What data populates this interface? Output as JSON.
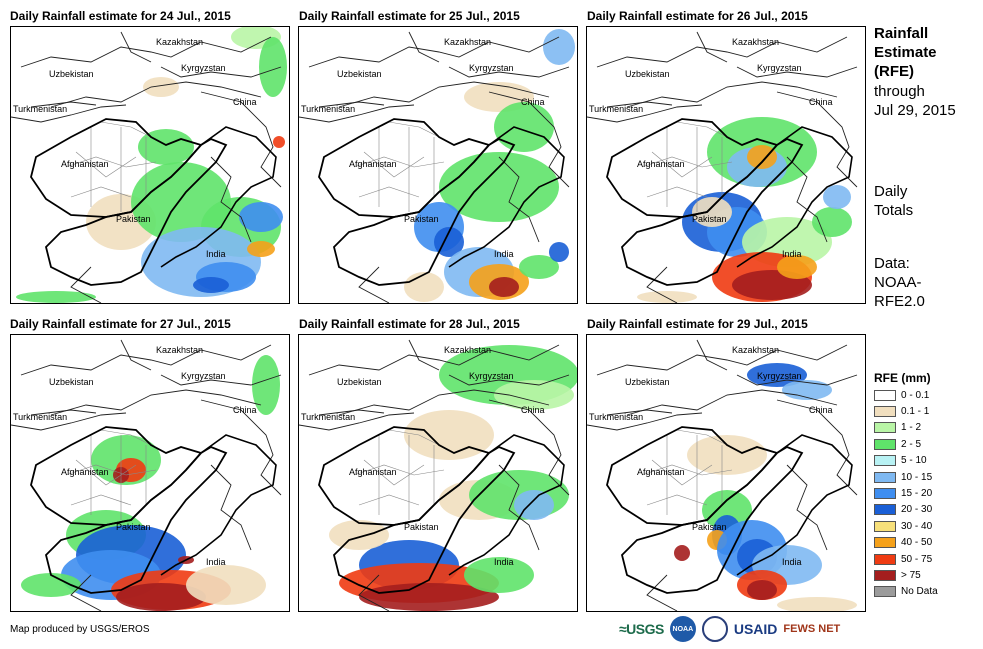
{
  "panels": [
    {
      "title": "Daily Rainfall estimate for 24 Jul., 2015"
    },
    {
      "title": "Daily Rainfall estimate for 25 Jul., 2015"
    },
    {
      "title": "Daily Rainfall estimate for 26 Jul., 2015"
    },
    {
      "title": "Daily Rainfall estimate for 27 Jul., 2015"
    },
    {
      "title": "Daily Rainfall estimate for 28 Jul., 2015"
    },
    {
      "title": "Daily Rainfall estimate for 29 Jul., 2015"
    }
  ],
  "country_labels": {
    "kazakhstan": "Kazakhstan",
    "kyrgyzstan": "Kyrgyzstan",
    "uzbekistan": "Uzbekistan",
    "turkmenistan": "Turkmenistan",
    "china": "China",
    "afghanistan": "Afghanistan",
    "pakistan": "Pakistan",
    "india": "India"
  },
  "side": {
    "title_line1": "Rainfall",
    "title_line2": "Estimate",
    "title_line3": "(RFE)",
    "through": "through",
    "date": "Jul 29, 2015",
    "daily": "Daily",
    "totals": "Totals",
    "data": "Data:",
    "noaa": "NOAA-",
    "rfe": "RFE2.0"
  },
  "legend": {
    "title": "RFE (mm)",
    "items": [
      {
        "label": "0 - 0.1",
        "color": "#ffffff"
      },
      {
        "label": "0.1 - 1",
        "color": "#f1dfbf"
      },
      {
        "label": "1 - 2",
        "color": "#b9f5a6"
      },
      {
        "label": "2 - 5",
        "color": "#5fe36a"
      },
      {
        "label": "5 - 10",
        "color": "#b8f2f4"
      },
      {
        "label": "10 - 15",
        "color": "#7fb9f2"
      },
      {
        "label": "15 - 20",
        "color": "#3f8ef0"
      },
      {
        "label": "20 - 30",
        "color": "#1a5fd6"
      },
      {
        "label": "30 - 40",
        "color": "#f7e07a"
      },
      {
        "label": "40 - 50",
        "color": "#f5a11a"
      },
      {
        "label": "50 - 75",
        "color": "#ef3b12"
      },
      {
        "label": "> 75",
        "color": "#a41e1e"
      },
      {
        "label": "No Data",
        "color": "#9b9b9b"
      }
    ]
  },
  "credit": "Map produced by USGS/EROS",
  "logos": {
    "usgs": "≈USGS",
    "noaa": "NOAA",
    "usaid": "USAID",
    "fews": "FEWS NET"
  }
}
